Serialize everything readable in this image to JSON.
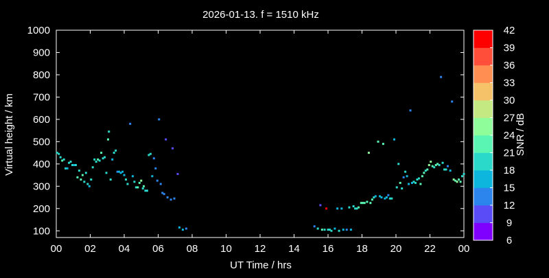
{
  "chart_data": {
    "type": "scatter",
    "title": "2026-01-13. f = 1510 kHz",
    "xlabel": "UT Time / hrs",
    "ylabel": "Virtual height / km",
    "colorbar_label": "SNR / dB",
    "xlim": [
      0,
      24
    ],
    "ylim": [
      70,
      1000
    ],
    "x_ticks": [
      "00",
      "02",
      "04",
      "06",
      "08",
      "10",
      "12",
      "14",
      "16",
      "18",
      "20",
      "22",
      "00"
    ],
    "y_ticks": [
      100,
      200,
      300,
      400,
      500,
      600,
      700,
      800,
      900,
      1000
    ],
    "colorbar_range": [
      6,
      42
    ],
    "colorbar_ticks": [
      6,
      9,
      12,
      15,
      18,
      21,
      24,
      27,
      30,
      33,
      36,
      39,
      42
    ],
    "colorbar_colors": [
      "#8000ff",
      "#5a4cf7",
      "#2b85ec",
      "#0cb6dc",
      "#2ad9c9",
      "#5af5b3",
      "#90fd9b",
      "#c5e982",
      "#f5c26a",
      "#ff8e52",
      "#ff4f3a",
      "#ff0000"
    ],
    "points": [
      [
        0.05,
        450,
        20
      ],
      [
        0.15,
        445,
        19
      ],
      [
        0.25,
        430,
        20
      ],
      [
        0.35,
        415,
        21
      ],
      [
        0.45,
        420,
        20
      ],
      [
        0.55,
        380,
        18
      ],
      [
        0.65,
        380,
        17
      ],
      [
        0.75,
        405,
        18
      ],
      [
        0.85,
        410,
        19
      ],
      [
        0.95,
        395,
        18
      ],
      [
        1.05,
        395,
        17
      ],
      [
        1.15,
        395,
        18
      ],
      [
        1.25,
        340,
        22
      ],
      [
        1.35,
        370,
        20
      ],
      [
        1.45,
        330,
        21
      ],
      [
        1.55,
        350,
        21
      ],
      [
        1.65,
        320,
        20
      ],
      [
        1.75,
        360,
        19
      ],
      [
        1.85,
        310,
        20
      ],
      [
        1.95,
        300,
        15
      ],
      [
        2.05,
        330,
        18
      ],
      [
        2.15,
        385,
        19
      ],
      [
        2.25,
        420,
        20
      ],
      [
        2.35,
        410,
        18
      ],
      [
        2.45,
        420,
        21
      ],
      [
        2.55,
        415,
        19
      ],
      [
        2.65,
        450,
        22
      ],
      [
        2.75,
        425,
        20
      ],
      [
        2.85,
        430,
        19
      ],
      [
        2.95,
        360,
        18
      ],
      [
        3.05,
        510,
        21
      ],
      [
        3.1,
        545,
        19
      ],
      [
        3.2,
        330,
        18
      ],
      [
        3.3,
        420,
        17
      ],
      [
        3.4,
        450,
        18
      ],
      [
        3.5,
        460,
        19
      ],
      [
        3.6,
        365,
        14
      ],
      [
        3.7,
        365,
        15
      ],
      [
        3.8,
        360,
        16
      ],
      [
        3.9,
        365,
        17
      ],
      [
        4.0,
        350,
        16
      ],
      [
        4.1,
        330,
        18
      ],
      [
        4.2,
        310,
        20
      ],
      [
        4.35,
        580,
        12
      ],
      [
        4.5,
        345,
        15
      ],
      [
        4.6,
        320,
        18
      ],
      [
        4.7,
        295,
        19
      ],
      [
        4.8,
        295,
        21
      ],
      [
        4.9,
        315,
        22
      ],
      [
        5.0,
        325,
        25
      ],
      [
        5.1,
        290,
        20
      ],
      [
        5.15,
        300,
        22
      ],
      [
        5.25,
        280,
        19
      ],
      [
        5.35,
        280,
        18
      ],
      [
        5.45,
        440,
        18
      ],
      [
        5.55,
        445,
        19
      ],
      [
        5.65,
        345,
        15
      ],
      [
        5.75,
        425,
        12
      ],
      [
        5.85,
        380,
        13
      ],
      [
        5.95,
        325,
        14
      ],
      [
        6.05,
        600,
        12
      ],
      [
        6.15,
        310,
        13
      ],
      [
        6.25,
        270,
        13
      ],
      [
        6.35,
        265,
        14
      ],
      [
        6.45,
        510,
        10
      ],
      [
        6.55,
        250,
        14
      ],
      [
        6.75,
        240,
        13
      ],
      [
        6.85,
        470,
        11
      ],
      [
        6.95,
        245,
        12
      ],
      [
        7.15,
        355,
        10
      ],
      [
        7.25,
        115,
        15
      ],
      [
        7.45,
        105,
        15
      ],
      [
        7.65,
        110,
        13
      ],
      [
        15.2,
        120,
        13
      ],
      [
        15.4,
        110,
        20
      ],
      [
        15.55,
        215,
        11
      ],
      [
        15.65,
        105,
        21
      ],
      [
        15.8,
        105,
        20
      ],
      [
        15.9,
        200,
        41
      ],
      [
        16.0,
        105,
        19
      ],
      [
        16.1,
        105,
        20
      ],
      [
        16.2,
        100,
        18
      ],
      [
        16.4,
        110,
        17
      ],
      [
        16.55,
        200,
        16
      ],
      [
        16.65,
        100,
        18
      ],
      [
        16.8,
        200,
        17
      ],
      [
        16.9,
        105,
        15
      ],
      [
        17.1,
        105,
        13
      ],
      [
        17.25,
        205,
        19
      ],
      [
        17.35,
        105,
        15
      ],
      [
        17.5,
        210,
        18
      ],
      [
        17.6,
        200,
        19
      ],
      [
        17.7,
        200,
        20
      ],
      [
        17.8,
        205,
        21
      ],
      [
        17.95,
        225,
        22
      ],
      [
        18.05,
        225,
        21
      ],
      [
        18.15,
        225,
        22
      ],
      [
        18.3,
        230,
        23
      ],
      [
        18.4,
        450,
        24
      ],
      [
        18.5,
        225,
        23
      ],
      [
        18.6,
        240,
        22
      ],
      [
        18.7,
        250,
        18
      ],
      [
        18.8,
        255,
        16
      ],
      [
        18.95,
        500,
        22
      ],
      [
        19.05,
        255,
        17
      ],
      [
        19.15,
        250,
        16
      ],
      [
        19.25,
        490,
        22
      ],
      [
        19.35,
        245,
        17
      ],
      [
        19.45,
        250,
        15
      ],
      [
        19.55,
        260,
        14
      ],
      [
        19.65,
        245,
        18
      ],
      [
        19.75,
        245,
        19
      ],
      [
        19.9,
        510,
        16
      ],
      [
        20.05,
        295,
        19
      ],
      [
        20.15,
        400,
        19
      ],
      [
        20.25,
        315,
        21
      ],
      [
        20.35,
        290,
        20
      ],
      [
        20.45,
        340,
        14
      ],
      [
        20.55,
        365,
        18
      ],
      [
        20.65,
        345,
        17
      ],
      [
        20.75,
        310,
        16
      ],
      [
        20.85,
        640,
        12
      ],
      [
        20.95,
        315,
        15
      ],
      [
        21.05,
        320,
        18
      ],
      [
        21.15,
        315,
        19
      ],
      [
        21.25,
        330,
        20
      ],
      [
        21.35,
        335,
        19
      ],
      [
        21.45,
        310,
        21
      ],
      [
        21.55,
        345,
        22
      ],
      [
        21.65,
        360,
        21
      ],
      [
        21.75,
        370,
        20
      ],
      [
        21.85,
        375,
        23
      ],
      [
        21.95,
        395,
        24
      ],
      [
        22.05,
        410,
        25
      ],
      [
        22.15,
        390,
        22
      ],
      [
        22.25,
        385,
        20
      ],
      [
        22.35,
        395,
        21
      ],
      [
        22.45,
        400,
        22
      ],
      [
        22.55,
        395,
        20
      ],
      [
        22.65,
        790,
        12
      ],
      [
        22.75,
        405,
        18
      ],
      [
        22.85,
        375,
        20
      ],
      [
        22.95,
        375,
        19
      ],
      [
        23.05,
        390,
        14
      ],
      [
        23.2,
        370,
        17
      ],
      [
        23.3,
        680,
        13
      ],
      [
        23.4,
        330,
        24
      ],
      [
        23.5,
        325,
        23
      ],
      [
        23.6,
        320,
        24
      ],
      [
        23.7,
        330,
        21
      ],
      [
        23.8,
        320,
        22
      ],
      [
        23.9,
        345,
        19
      ],
      [
        24.0,
        355,
        18
      ]
    ]
  }
}
